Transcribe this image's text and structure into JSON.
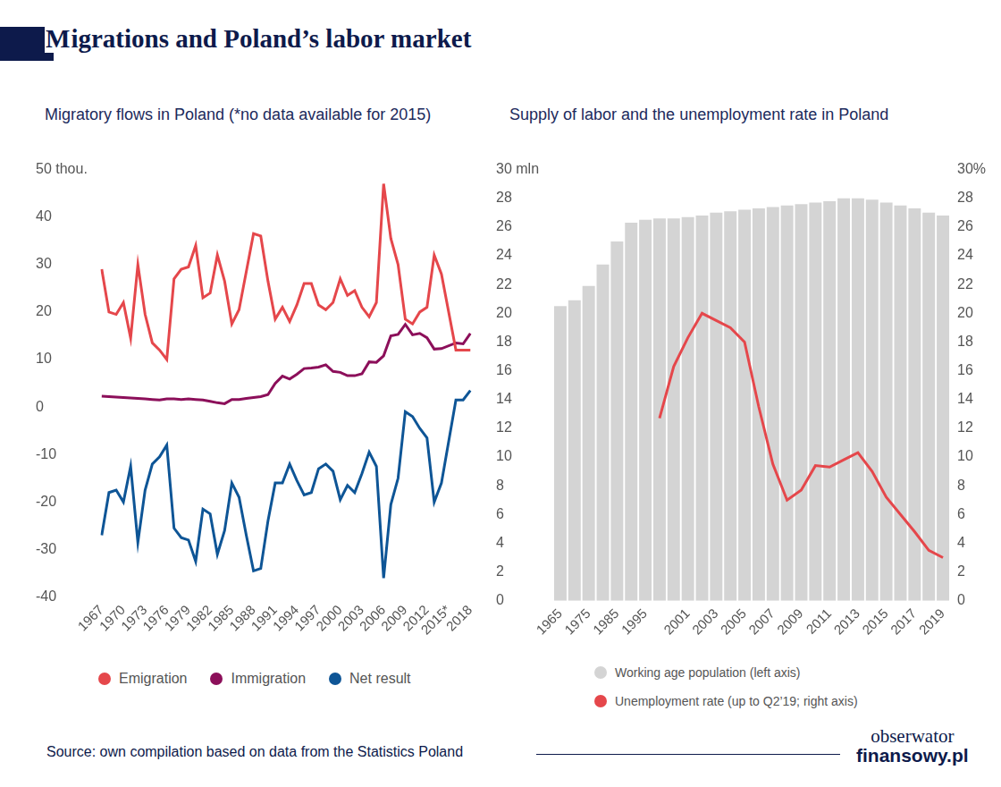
{
  "title": "Migrations and Poland’s labor market",
  "source": "Source: own compilation based on data from the Statistics Poland",
  "logo": {
    "top": "obserwator",
    "bottom": "finansowy.pl"
  },
  "chart_data": [
    {
      "type": "line",
      "title": "Migratory flows in Poland (*no data available for 2015)",
      "categories": [
        "1967",
        null,
        null,
        "1970",
        null,
        null,
        "1973",
        null,
        null,
        "1976",
        null,
        null,
        "1979",
        null,
        null,
        "1982",
        null,
        null,
        "1985",
        null,
        null,
        "1988",
        null,
        null,
        "1991",
        null,
        null,
        "1994",
        null,
        null,
        "1997",
        null,
        null,
        "2000",
        null,
        null,
        "2003",
        null,
        null,
        "2006",
        null,
        null,
        "2009",
        null,
        null,
        "2012",
        null,
        null,
        "2015*",
        null,
        null,
        "2018"
      ],
      "series": [
        {
          "name": "Emigration",
          "color": "#e5474b",
          "values": [
            29,
            20,
            19.5,
            22,
            14.5,
            30,
            19.5,
            13.5,
            12,
            10,
            27,
            29,
            29.5,
            34,
            23,
            24,
            32,
            26.5,
            17.5,
            20.5,
            28.5,
            36.5,
            36,
            26.5,
            18.5,
            21,
            18,
            21.5,
            26,
            26,
            21.5,
            20.5,
            22,
            27,
            23.5,
            24.5,
            21,
            19,
            22,
            47,
            35.5,
            30,
            18.5,
            17.5,
            20,
            21,
            32,
            28,
            null,
            12,
            12,
            12
          ]
        },
        {
          "name": "Immigration",
          "color": "#8c0f5a",
          "values": [
            2.3,
            2.2,
            2.1,
            2.0,
            1.9,
            1.8,
            1.7,
            1.6,
            1.5,
            1.7,
            1.7,
            1.6,
            1.7,
            1.6,
            1.5,
            1.2,
            0.9,
            0.7,
            1.6,
            1.6,
            1.8,
            2.0,
            2.2,
            2.6,
            5.0,
            6.5,
            5.9,
            6.9,
            8.1,
            8.2,
            8.4,
            8.9,
            7.5,
            7.3,
            6.6,
            6.6,
            7.0,
            9.5,
            9.4,
            10.8,
            15.0,
            15.3,
            17.4,
            15.2,
            15.5,
            14.6,
            12.2,
            12.3,
            null,
            13.5,
            13.3,
            15.5
          ]
        },
        {
          "name": "Net result",
          "color": "#0e5596",
          "values": [
            -27,
            -18,
            -17.5,
            -20,
            -12.5,
            -28.5,
            -17.5,
            -12,
            -10.5,
            -8,
            -25.5,
            -27.5,
            -28,
            -32.5,
            -21.5,
            -22.5,
            -31,
            -26,
            -16,
            -19,
            -27,
            -34.5,
            -34,
            -24,
            -16,
            -16,
            -12,
            -15.5,
            -18.5,
            -18,
            -13,
            -12,
            -13.5,
            -19.5,
            -16.5,
            -18,
            -14,
            -9.5,
            -12.5,
            -36,
            -20.5,
            -15,
            -1,
            -2,
            -4.5,
            -6.5,
            -20,
            -16,
            null,
            1.5,
            1.5,
            3.5
          ]
        }
      ],
      "ylim": [
        -40,
        50
      ],
      "yticks": [
        {
          "value": 50,
          "label": "50 thou."
        },
        40,
        30,
        20,
        10,
        0,
        -10,
        -20,
        -30,
        -40
      ],
      "grid": false,
      "legend": "bottom",
      "marker": "none"
    },
    {
      "type": "bar",
      "title": "Supply of labor and the unemployment rate in Poland",
      "categories": [
        "1965",
        null,
        "1975",
        null,
        "1985",
        null,
        "1995",
        null,
        null,
        "2001",
        null,
        "2003",
        null,
        "2005",
        null,
        "2007",
        null,
        "2009",
        null,
        "2011",
        null,
        "2013",
        null,
        "2015",
        null,
        "2017",
        null,
        "2019"
      ],
      "series": [
        {
          "name": "Working age population (left axis)",
          "color": "#d4d4d4",
          "values": [
            20.5,
            20.9,
            21.9,
            23.4,
            25.0,
            26.3,
            26.5,
            26.6,
            26.6,
            26.7,
            26.8,
            27.0,
            27.1,
            27.2,
            27.3,
            27.4,
            27.5,
            27.6,
            27.7,
            27.8,
            28.0,
            28.0,
            27.9,
            27.7,
            27.5,
            27.3,
            27.0,
            26.8
          ]
        },
        {
          "name": "Unemployment rate (up to Q2’19; right axis)",
          "color": "#e5474b",
          "type": "line",
          "axis": "y2",
          "values": [
            null,
            null,
            null,
            null,
            null,
            null,
            null,
            12.7,
            16.3,
            18.3,
            20,
            19.5,
            19,
            18,
            13.5,
            9.5,
            7,
            7.7,
            9.4,
            9.3,
            9.8,
            10.3,
            9,
            7.2,
            6,
            4.8,
            3.5,
            3.0
          ]
        }
      ],
      "ylim": [
        0,
        30
      ],
      "yticks": [
        0,
        2,
        4,
        6,
        8,
        10,
        12,
        14,
        16,
        18,
        20,
        22,
        24,
        26,
        28,
        {
          "value": 30,
          "label": "30 mln"
        }
      ],
      "y2lim": [
        0,
        30
      ],
      "y2ticks": [
        0,
        2,
        4,
        6,
        8,
        10,
        12,
        14,
        16,
        18,
        20,
        22,
        24,
        26,
        28,
        {
          "value": 30,
          "label": "30%"
        }
      ],
      "grid": false,
      "legend": "bottom",
      "marker": "none"
    }
  ]
}
